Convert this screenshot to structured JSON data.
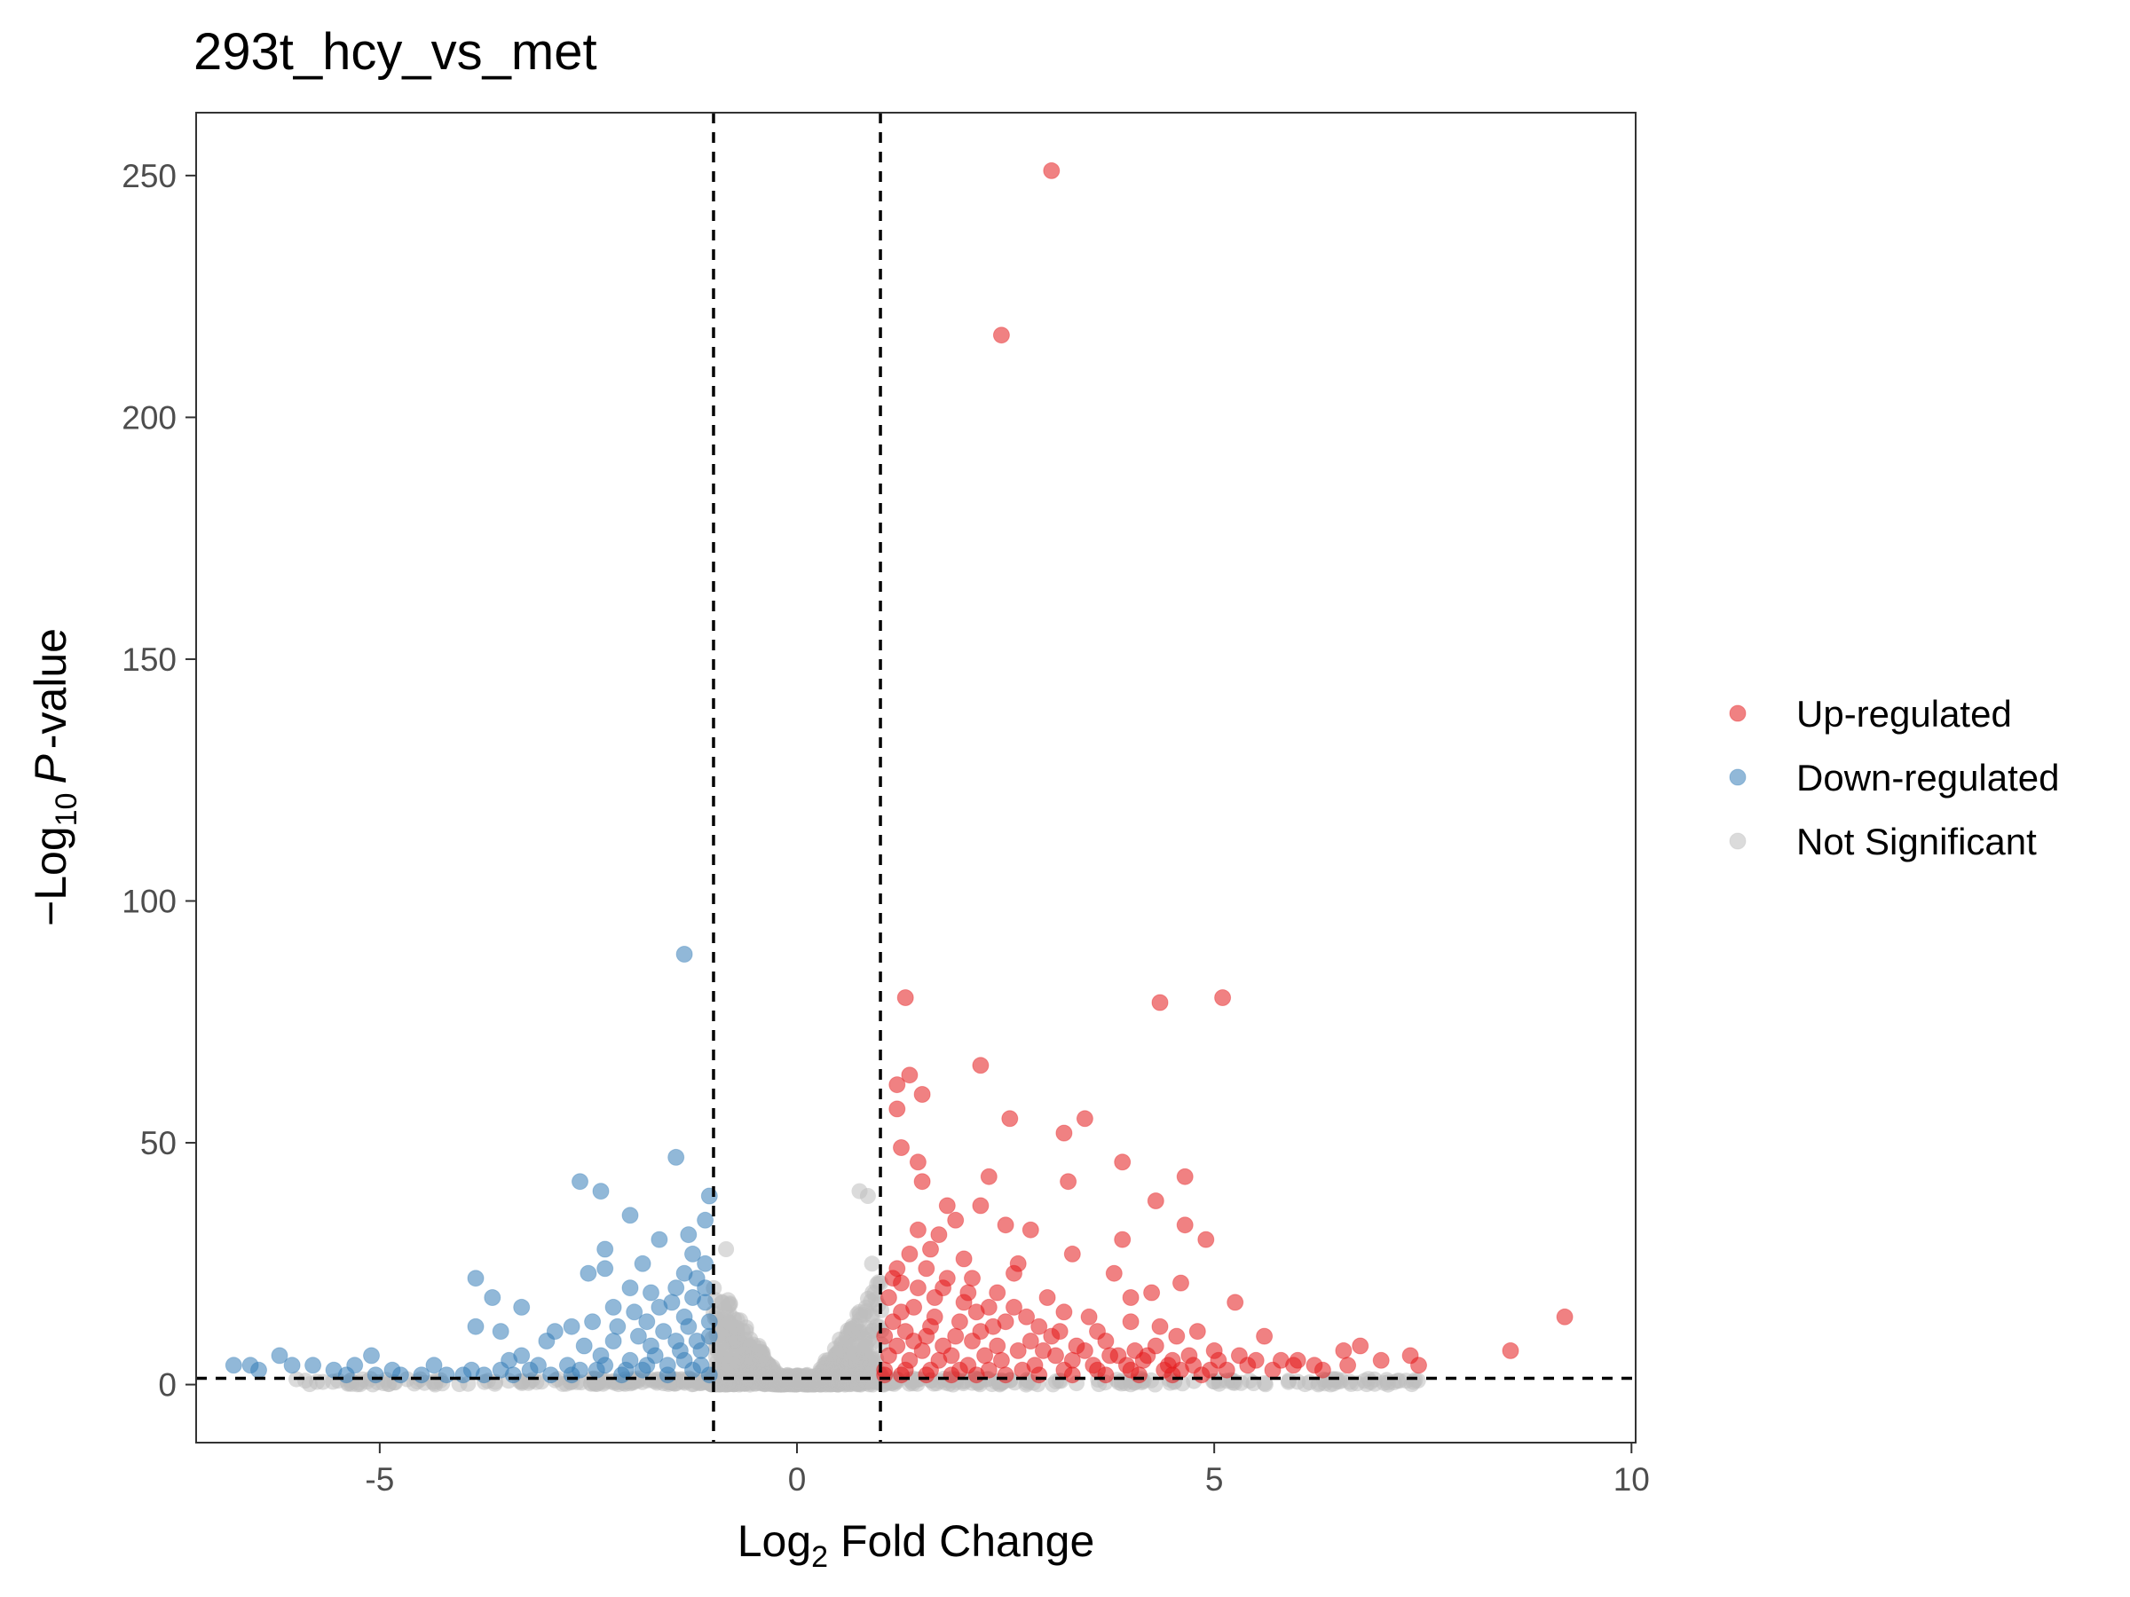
{
  "chart_data": {
    "type": "scatter",
    "title": "293t_hcy_vs_met",
    "xlabel": {
      "prefix": "Log",
      "sub": "2",
      "rest": " Fold Change"
    },
    "ylabel": {
      "prefix": "−Log",
      "sub": "10",
      "italic": "P",
      "rest": "-value"
    },
    "xlim": [
      -7.2,
      10.05
    ],
    "ylim": [
      -12,
      263
    ],
    "xticks": [
      -5,
      0,
      5,
      10
    ],
    "xtick_labels": [
      "-5",
      "0",
      "5",
      "10"
    ],
    "yticks": [
      0,
      50,
      100,
      150,
      200,
      250
    ],
    "ytick_labels": [
      "0",
      "50",
      "100",
      "150",
      "200",
      "250"
    ],
    "grid": false,
    "legend_position": "right",
    "thresholds": {
      "log2fc": [
        -1,
        1
      ],
      "neg_log10_p": 1.3
    },
    "colors": {
      "up": "#e41a1c",
      "down": "#377eb8",
      "ns": "#bdbdbd"
    },
    "series": [
      {
        "name": "Up-regulated",
        "key": "up",
        "points": [
          [
            3.05,
            251
          ],
          [
            2.45,
            217
          ],
          [
            1.3,
            80
          ],
          [
            4.35,
            79
          ],
          [
            5.1,
            80
          ],
          [
            2.2,
            66
          ],
          [
            1.35,
            64
          ],
          [
            1.2,
            62
          ],
          [
            1.5,
            60
          ],
          [
            2.55,
            55
          ],
          [
            3.45,
            55
          ],
          [
            1.2,
            57
          ],
          [
            3.2,
            52
          ],
          [
            1.25,
            49
          ],
          [
            1.45,
            46
          ],
          [
            3.9,
            46
          ],
          [
            2.3,
            43
          ],
          [
            3.25,
            42
          ],
          [
            4.65,
            43
          ],
          [
            1.5,
            42
          ],
          [
            4.3,
            38
          ],
          [
            1.8,
            37
          ],
          [
            2.2,
            37
          ],
          [
            2.5,
            33
          ],
          [
            2.8,
            32
          ],
          [
            4.65,
            33
          ],
          [
            1.45,
            32
          ],
          [
            1.7,
            31
          ],
          [
            1.9,
            34
          ],
          [
            3.9,
            30
          ],
          [
            4.9,
            30
          ],
          [
            1.6,
            28
          ],
          [
            2.0,
            26
          ],
          [
            3.3,
            27
          ],
          [
            2.65,
            25
          ],
          [
            2.6,
            23
          ],
          [
            2.1,
            22
          ],
          [
            3.8,
            23
          ],
          [
            1.2,
            24
          ],
          [
            1.55,
            24
          ],
          [
            1.25,
            21
          ],
          [
            1.75,
            20
          ],
          [
            2.4,
            19
          ],
          [
            3.0,
            18
          ],
          [
            4.0,
            18
          ],
          [
            4.25,
            19
          ],
          [
            4.6,
            21
          ],
          [
            5.25,
            17
          ],
          [
            1.4,
            16
          ],
          [
            2.0,
            17
          ],
          [
            2.6,
            16
          ],
          [
            3.2,
            15
          ],
          [
            3.5,
            14
          ],
          [
            4.0,
            13
          ],
          [
            4.8,
            11
          ],
          [
            5.6,
            10
          ],
          [
            4.35,
            12
          ],
          [
            4.55,
            10
          ],
          [
            3.6,
            11
          ],
          [
            2.9,
            12
          ],
          [
            1.15,
            13
          ],
          [
            1.3,
            11
          ],
          [
            1.6,
            12
          ],
          [
            1.9,
            10
          ],
          [
            2.2,
            11
          ],
          [
            2.5,
            13
          ],
          [
            2.8,
            9
          ],
          [
            3.05,
            10
          ],
          [
            3.35,
            8
          ],
          [
            3.7,
            9
          ],
          [
            4.05,
            7
          ],
          [
            4.3,
            8
          ],
          [
            4.7,
            6
          ],
          [
            5.0,
            7
          ],
          [
            5.3,
            6
          ],
          [
            5.5,
            5
          ],
          [
            5.8,
            5
          ],
          [
            6.0,
            5
          ],
          [
            6.2,
            4
          ],
          [
            6.55,
            7
          ],
          [
            6.75,
            8
          ],
          [
            7.0,
            5
          ],
          [
            7.35,
            6
          ],
          [
            7.45,
            4
          ],
          [
            8.55,
            7
          ],
          [
            9.2,
            14
          ],
          [
            1.1,
            6
          ],
          [
            1.2,
            8
          ],
          [
            1.35,
            5
          ],
          [
            1.5,
            7
          ],
          [
            1.7,
            5
          ],
          [
            1.85,
            6
          ],
          [
            2.05,
            4
          ],
          [
            2.25,
            6
          ],
          [
            2.45,
            5
          ],
          [
            2.65,
            7
          ],
          [
            2.85,
            4
          ],
          [
            3.1,
            6
          ],
          [
            3.3,
            5
          ],
          [
            3.55,
            4
          ],
          [
            3.75,
            6
          ],
          [
            3.95,
            4
          ],
          [
            4.15,
            5
          ],
          [
            4.45,
            4
          ],
          [
            4.6,
            3
          ],
          [
            4.75,
            4
          ],
          [
            4.95,
            3
          ],
          [
            5.15,
            3
          ],
          [
            5.4,
            4
          ],
          [
            5.7,
            3
          ],
          [
            5.95,
            4
          ],
          [
            6.3,
            3
          ],
          [
            6.6,
            4
          ],
          [
            1.05,
            3
          ],
          [
            1.3,
            3
          ],
          [
            1.6,
            3
          ],
          [
            1.95,
            3
          ],
          [
            2.3,
            3
          ],
          [
            2.7,
            3
          ],
          [
            3.2,
            3
          ],
          [
            3.6,
            3
          ],
          [
            4.0,
            3
          ],
          [
            4.4,
            3
          ],
          [
            1.1,
            18
          ],
          [
            1.25,
            15
          ],
          [
            1.45,
            20
          ],
          [
            1.65,
            14
          ],
          [
            1.8,
            22
          ],
          [
            1.95,
            13
          ],
          [
            2.15,
            15
          ],
          [
            2.35,
            12
          ],
          [
            2.75,
            14
          ],
          [
            3.15,
            11
          ],
          [
            1.4,
            9
          ],
          [
            1.55,
            10
          ],
          [
            1.75,
            8
          ],
          [
            2.1,
            9
          ],
          [
            2.4,
            8
          ],
          [
            2.95,
            7
          ],
          [
            3.45,
            7
          ],
          [
            3.85,
            6
          ],
          [
            4.2,
            6
          ],
          [
            4.5,
            5
          ],
          [
            5.05,
            5
          ],
          [
            1.05,
            10
          ],
          [
            1.15,
            22
          ],
          [
            1.35,
            27
          ],
          [
            1.65,
            18
          ],
          [
            2.05,
            19
          ],
          [
            2.3,
            16
          ],
          [
            1.05,
            2
          ],
          [
            1.25,
            2
          ],
          [
            1.55,
            2
          ],
          [
            1.85,
            2
          ],
          [
            2.15,
            2
          ],
          [
            2.5,
            2
          ],
          [
            2.9,
            2
          ],
          [
            3.3,
            2
          ],
          [
            3.7,
            2
          ],
          [
            4.1,
            2
          ],
          [
            4.5,
            2
          ],
          [
            4.85,
            2
          ]
        ]
      },
      {
        "name": "Down-regulated",
        "key": "down",
        "points": [
          [
            -1.35,
            89
          ],
          [
            -1.45,
            47
          ],
          [
            -2.6,
            42
          ],
          [
            -2.35,
            40
          ],
          [
            -1.05,
            39
          ],
          [
            -3.85,
            22
          ],
          [
            -3.65,
            18
          ],
          [
            -3.3,
            16
          ],
          [
            -3.85,
            12
          ],
          [
            -3.55,
            11
          ],
          [
            -2.0,
            35
          ],
          [
            -1.65,
            30
          ],
          [
            -1.3,
            31
          ],
          [
            -1.1,
            34
          ],
          [
            -2.3,
            28
          ],
          [
            -2.5,
            23
          ],
          [
            -2.3,
            24
          ],
          [
            -1.85,
            25
          ],
          [
            -1.25,
            27
          ],
          [
            -1.2,
            22
          ],
          [
            -1.1,
            25
          ],
          [
            -2.0,
            20
          ],
          [
            -1.75,
            19
          ],
          [
            -1.45,
            20
          ],
          [
            -2.2,
            16
          ],
          [
            -2.45,
            13
          ],
          [
            -2.7,
            12
          ],
          [
            -2.9,
            11
          ],
          [
            -1.95,
            15
          ],
          [
            -1.65,
            16
          ],
          [
            -1.35,
            14
          ],
          [
            -1.1,
            17
          ],
          [
            -3.0,
            9
          ],
          [
            -3.3,
            6
          ],
          [
            -3.45,
            5
          ],
          [
            -2.55,
            8
          ],
          [
            -2.2,
            9
          ],
          [
            -1.9,
            10
          ],
          [
            -1.6,
            11
          ],
          [
            -1.3,
            12
          ],
          [
            -1.05,
            10
          ],
          [
            -1.15,
            7
          ],
          [
            -1.4,
            7
          ],
          [
            -1.7,
            6
          ],
          [
            -2.0,
            5
          ],
          [
            -2.35,
            6
          ],
          [
            -2.75,
            4
          ],
          [
            -3.1,
            4
          ],
          [
            -3.55,
            3
          ],
          [
            -3.9,
            3
          ],
          [
            -4.35,
            4
          ],
          [
            -4.5,
            2
          ],
          [
            -4.85,
            3
          ],
          [
            -5.1,
            6
          ],
          [
            -5.3,
            4
          ],
          [
            -5.55,
            3
          ],
          [
            -5.8,
            4
          ],
          [
            -6.05,
            4
          ],
          [
            -6.2,
            6
          ],
          [
            -6.45,
            3
          ],
          [
            -6.55,
            4
          ],
          [
            -6.75,
            4
          ],
          [
            -5.4,
            2
          ],
          [
            -5.05,
            2
          ],
          [
            -4.75,
            2
          ],
          [
            -4.2,
            2
          ],
          [
            -4.0,
            2
          ],
          [
            -3.75,
            2
          ],
          [
            -3.4,
            2
          ],
          [
            -3.2,
            3
          ],
          [
            -2.95,
            2
          ],
          [
            -2.7,
            2
          ],
          [
            -2.4,
            3
          ],
          [
            -2.1,
            2
          ],
          [
            -1.85,
            3
          ],
          [
            -1.55,
            2
          ],
          [
            -1.25,
            3
          ],
          [
            -1.05,
            2
          ],
          [
            -1.15,
            4
          ],
          [
            -1.35,
            5
          ],
          [
            -1.55,
            4
          ],
          [
            -1.8,
            4
          ],
          [
            -2.05,
            3
          ],
          [
            -2.3,
            4
          ],
          [
            -2.6,
            3
          ],
          [
            -1.2,
            9
          ],
          [
            -1.45,
            9
          ],
          [
            -1.75,
            8
          ],
          [
            -1.05,
            13
          ],
          [
            -1.25,
            18
          ],
          [
            -1.5,
            17
          ],
          [
            -1.8,
            13
          ],
          [
            -2.15,
            12
          ],
          [
            -1.1,
            20
          ],
          [
            -1.35,
            23
          ]
        ]
      }
    ],
    "legend": [
      {
        "key": "up",
        "label": "Up-regulated"
      },
      {
        "key": "down",
        "label": "Down-regulated"
      },
      {
        "key": "ns",
        "label": "Not Significant"
      }
    ]
  }
}
